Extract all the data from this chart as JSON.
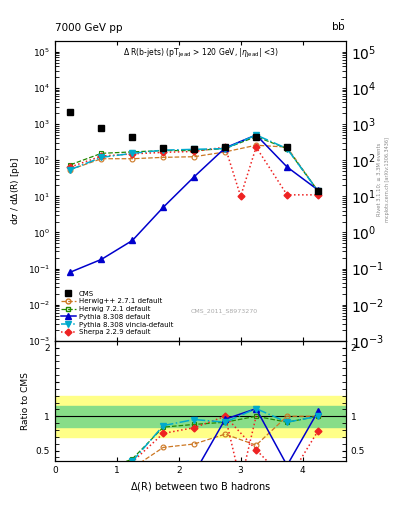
{
  "cms_x": [
    0.25,
    0.75,
    1.25,
    1.75,
    2.25,
    2.75,
    3.25,
    3.75,
    4.25
  ],
  "cms_y": [
    2200,
    800,
    450,
    220,
    210,
    230,
    450,
    230,
    14
  ],
  "hw271_x": [
    0.25,
    0.75,
    1.25,
    1.75,
    2.25,
    2.75,
    3.25,
    3.75,
    4.25
  ],
  "hw271_y": [
    55,
    110,
    110,
    120,
    125,
    170,
    260,
    230,
    14
  ],
  "hw271_color": "#cc7722",
  "hw721_x": [
    0.25,
    0.75,
    1.25,
    1.75,
    2.25,
    2.75,
    3.25,
    3.75,
    4.25
  ],
  "hw721_y": [
    75,
    155,
    170,
    185,
    185,
    210,
    450,
    210,
    14
  ],
  "hw721_color": "#228800",
  "py8_x": [
    0.25,
    0.75,
    1.25,
    1.75,
    2.25,
    2.75,
    3.25,
    3.75,
    4.25
  ],
  "py8_y": [
    0.08,
    0.18,
    0.6,
    5.0,
    35,
    220,
    500,
    65,
    15
  ],
  "py8_color": "#0000cc",
  "py8v_x": [
    0.25,
    0.75,
    1.25,
    1.75,
    2.25,
    2.75,
    3.25,
    3.75,
    4.25
  ],
  "py8v_y": [
    55,
    120,
    155,
    190,
    200,
    210,
    500,
    210,
    14
  ],
  "py8v_color": "#00aacc",
  "sh_x": [
    0.25,
    0.75,
    1.25,
    1.75,
    2.25,
    2.75,
    3.0,
    3.25,
    3.75,
    4.25
  ],
  "sh_y": [
    65,
    130,
    150,
    165,
    175,
    230,
    10,
    230,
    11,
    11
  ],
  "sh_color": "#ee2222",
  "ratio_yellow": [
    0.7,
    1.3
  ],
  "ratio_green": [
    0.85,
    1.15
  ],
  "ylim_main": [
    0.001,
    200000.0
  ],
  "ylim_ratio": [
    0.35,
    2.1
  ],
  "xlim": [
    0.0,
    4.7
  ]
}
